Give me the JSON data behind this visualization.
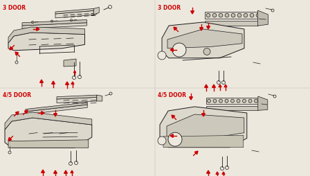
{
  "bg": "#ede8de",
  "lc": "#1a1a1a",
  "rc": "#cc0000",
  "label_color": "#cc0000",
  "panels": {
    "tl_label": "3 DOOR",
    "tr_label": "3 DOOR",
    "bl_label": "4/5 DOOR",
    "br_label": "4/5 DOOR"
  },
  "fig_w": 4.48,
  "fig_h": 2.54,
  "dpi": 100
}
